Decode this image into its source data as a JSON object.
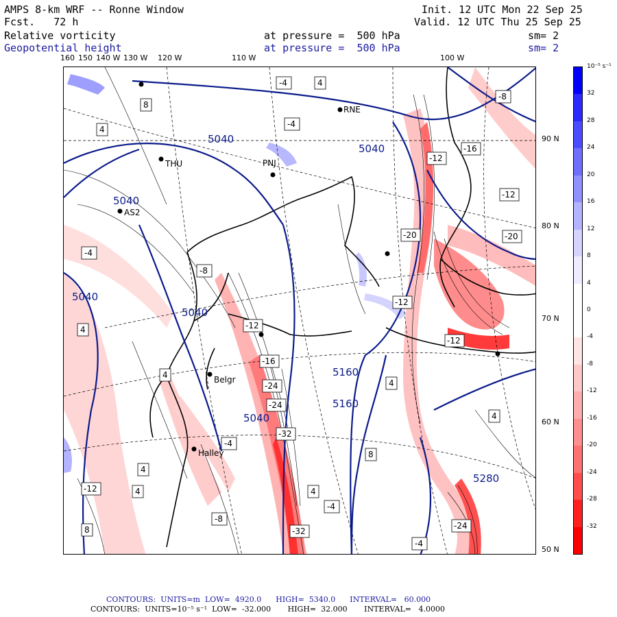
{
  "header": {
    "title": "AMPS 8-km WRF -- Ronne Window",
    "fcst": "Fcst.   72 h",
    "init": "Init. 12 UTC Mon 22 Sep 25",
    "valid": "Valid. 12 UTC Thu 25 Sep 25",
    "field1": "Relative vorticity",
    "field1_level": "at pressure =  500 hPa",
    "field1_sm": "sm= 2",
    "field2": "Geopotential height",
    "field2_level": "at pressure =  500 hPa",
    "field2_sm": "sm= 2"
  },
  "lon_labels": [
    "160",
    "150",
    "140 W",
    "130 W",
    "120 W",
    "110 W",
    "100 W"
  ],
  "lat_labels": [
    "90 N",
    "80 N",
    "70 N",
    "60 N",
    "50 N"
  ],
  "colorbar": {
    "units": "10⁻⁵ s⁻¹",
    "ticks": [
      "32",
      "28",
      "24",
      "20",
      "16",
      "12",
      "8",
      "4",
      "0",
      "-4",
      "-8",
      "-12",
      "-16",
      "-20",
      "-24",
      "-28",
      "-32"
    ],
    "colors": [
      "#0000ff",
      "#2a2aff",
      "#4b4bff",
      "#6e6eff",
      "#9090ff",
      "#b3b3ff",
      "#d4d4ff",
      "#ededff",
      "#ffffff",
      "#ffffff",
      "#ffe4e4",
      "#ffc8c8",
      "#ffacac",
      "#ff8f8f",
      "#ff7272",
      "#ff4c4c",
      "#ff2020",
      "#ff0000"
    ]
  },
  "map": {
    "stations": [
      "RNE",
      "THU",
      "PNJ",
      "AS2",
      "Belgr",
      "Halley"
    ],
    "height_labels": [
      "5040",
      "5040",
      "5040",
      "5040",
      "5040",
      "5040",
      "5160",
      "5160",
      "5280"
    ],
    "vort_labels": [
      "4",
      "-4",
      "8",
      "-8",
      "-12",
      "-16",
      "-20",
      "-24",
      "-32"
    ]
  },
  "footer": {
    "line1": "CONTOURS:  UNITS=m  LOW=  4920.0      HIGH=  5340.0      INTERVAL=   60.000",
    "line2": "CONTOURS:  UNITS=10⁻⁵ s⁻¹  LOW=  -32.000       HIGH=  32.000       INTERVAL=   4.0000"
  }
}
